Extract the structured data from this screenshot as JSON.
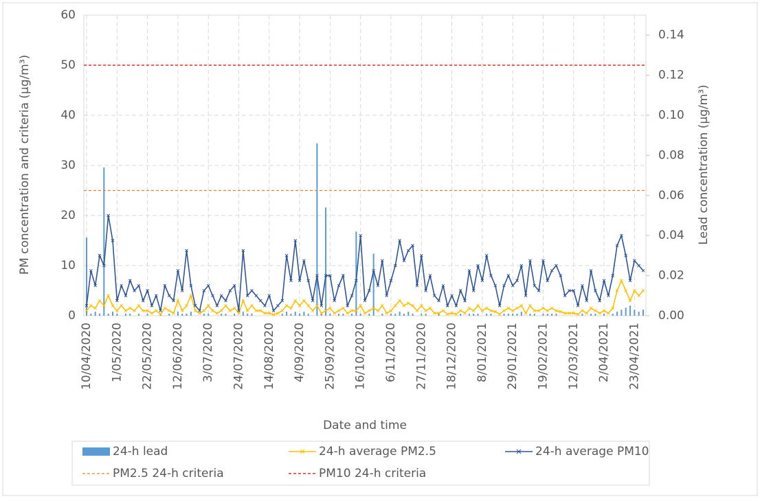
{
  "chart_data": {
    "type": "combo",
    "x_label": "Date and time",
    "y_label": "PM concentration and criteria (µg/m³)",
    "y2_label": "Lead concentration (µg/m³)",
    "categories": [
      "10/04/2020",
      null,
      null,
      null,
      null,
      null,
      null,
      "1/05/2020",
      null,
      null,
      null,
      null,
      null,
      null,
      "22/05/2020",
      null,
      null,
      null,
      null,
      null,
      null,
      "12/06/2020",
      null,
      null,
      null,
      null,
      null,
      null,
      "3/07/2020",
      null,
      null,
      null,
      null,
      null,
      null,
      "24/07/2020",
      null,
      null,
      null,
      null,
      null,
      null,
      "14/08/2020",
      null,
      null,
      null,
      null,
      null,
      null,
      "4/09/2020",
      null,
      null,
      null,
      null,
      null,
      null,
      "25/09/2020",
      null,
      null,
      null,
      null,
      null,
      null,
      "16/10/2020",
      null,
      null,
      null,
      null,
      null,
      null,
      "6/11/2020",
      null,
      null,
      null,
      null,
      null,
      null,
      "27/11/2020",
      null,
      null,
      null,
      null,
      null,
      null,
      "18/12/2020",
      null,
      null,
      null,
      null,
      null,
      null,
      "8/01/2021",
      null,
      null,
      null,
      null,
      null,
      null,
      "29/01/2021",
      null,
      null,
      null,
      null,
      null,
      null,
      "19/02/2021",
      null,
      null,
      null,
      null,
      null,
      null,
      "12/03/2021",
      null,
      null,
      null,
      null,
      null,
      null,
      "2/04/2021",
      null,
      null,
      null,
      null,
      null,
      null,
      "23/04/2021",
      null,
      null
    ],
    "ylim": [
      0,
      60
    ],
    "yticks": [
      0,
      10,
      20,
      30,
      40,
      50,
      60
    ],
    "y2lim": [
      0,
      0.15
    ],
    "y2ticks": [
      {
        "value": 0,
        "label": "0.00"
      },
      {
        "value": 0.02,
        "label": "0.02"
      },
      {
        "value": 0.04,
        "label": "0.04"
      },
      {
        "value": 0.06,
        "label": "0.06"
      },
      {
        "value": 0.08,
        "label": "0.08"
      },
      {
        "value": 0.1,
        "label": "0.10"
      },
      {
        "value": 0.12,
        "label": "0.12"
      },
      {
        "value": 0.14,
        "label": "0.14"
      }
    ],
    "grid": true,
    "series": [
      {
        "name": "24-h lead",
        "type": "bar",
        "axis": "y2",
        "color": "#5b9bd5",
        "values": [
          0.039,
          0.001,
          0.002,
          0.001,
          0.074,
          0.001,
          0.002,
          0.001,
          0,
          0.001,
          0.001,
          0,
          0.001,
          0,
          0.001,
          0,
          0,
          0.001,
          0,
          0.001,
          0,
          0.002,
          0.001,
          0.001,
          0.002,
          0,
          0,
          0.001,
          0.001,
          0,
          0,
          0.001,
          0.001,
          0,
          0.001,
          0,
          0.002,
          0.001,
          0.001,
          0,
          0,
          0,
          0,
          0,
          0,
          0.001,
          0.002,
          0.001,
          0.002,
          0.001,
          0.002,
          0.001,
          0,
          0.086,
          0.001,
          0.054,
          0.001,
          0,
          0.001,
          0.001,
          0,
          0.001,
          0.042,
          0.001,
          0,
          0.001,
          0.031,
          0,
          0.001,
          0,
          0.001,
          0.001,
          0.002,
          0.001,
          0.002,
          0.001,
          0,
          0.001,
          0.001,
          0,
          0,
          0.001,
          0,
          0,
          0,
          0,
          0.001,
          0,
          0.001,
          0.001,
          0.001,
          0,
          0.001,
          0.001,
          0,
          0,
          0.001,
          0.001,
          0.001,
          0.001,
          0.002,
          0,
          0.001,
          0.001,
          0,
          0.001,
          0.001,
          0.001,
          0.001,
          0,
          0,
          0,
          0,
          0,
          0.001,
          0,
          0.001,
          0.001,
          0,
          0.001,
          0,
          0.001,
          0.002,
          0.003,
          0.004,
          0.005,
          0.003,
          0.002,
          0.003
        ]
      },
      {
        "name": "24-h average PM2.5",
        "type": "line",
        "axis": "y",
        "color": "#ffc000",
        "values": [
          1,
          2,
          1.5,
          3,
          2,
          4,
          2,
          1,
          2,
          1,
          1.5,
          1,
          2,
          1,
          1,
          0.5,
          1,
          0.3,
          1.5,
          1,
          0.5,
          3,
          1,
          2,
          4,
          1,
          0.5,
          1,
          2,
          1,
          0.5,
          1,
          2,
          1,
          1.5,
          0.5,
          3,
          1,
          2,
          1,
          1,
          0.5,
          0.5,
          0.2,
          0.5,
          1,
          2,
          1.5,
          3,
          2,
          3,
          2,
          1,
          2,
          0.5,
          1,
          1.5,
          0.5,
          1,
          1.5,
          0.5,
          1,
          1,
          2,
          0.5,
          1,
          1.5,
          1,
          2,
          0.5,
          1,
          2,
          3,
          2,
          2.5,
          2,
          1,
          2,
          1,
          1.5,
          0.5,
          0.5,
          1,
          0.3,
          0.5,
          0.3,
          1,
          0.5,
          1.5,
          1,
          2,
          1,
          1.5,
          1,
          0.8,
          0.3,
          1,
          1.5,
          1,
          1.5,
          2,
          0.5,
          2,
          1,
          1,
          1.5,
          1,
          1.5,
          1,
          0.8,
          0.5,
          0.5,
          0.5,
          0.3,
          1,
          0.5,
          1.5,
          1,
          0.5,
          1,
          0.5,
          1.5,
          5,
          7,
          5,
          3,
          5,
          4,
          5
        ]
      },
      {
        "name": "24-h average PM10",
        "type": "line",
        "axis": "y",
        "color": "#2f5597",
        "values": [
          2,
          9,
          6,
          12,
          10,
          20,
          15,
          3,
          6,
          4,
          7,
          5,
          6,
          3,
          5,
          2,
          4,
          1,
          6,
          4,
          3,
          9,
          5,
          13,
          6,
          2,
          1,
          5,
          6,
          4,
          2,
          4,
          3,
          5,
          6,
          1,
          13,
          4,
          5,
          4,
          3,
          2,
          4,
          1,
          2,
          3,
          12,
          7,
          15,
          7,
          11,
          7,
          3,
          8,
          2,
          8,
          8,
          3,
          6,
          8,
          2,
          4,
          7,
          16,
          3,
          5,
          9,
          6,
          11,
          4,
          7,
          10,
          15,
          11,
          13,
          14,
          6,
          12,
          5,
          8,
          4,
          3,
          6,
          2,
          4,
          2,
          5,
          3,
          9,
          5,
          10,
          7,
          12,
          8,
          6,
          2,
          6,
          8,
          6,
          7,
          10,
          4,
          11,
          6,
          5,
          11,
          7,
          9,
          10,
          8,
          4,
          5,
          5,
          2,
          6,
          3,
          9,
          5,
          3,
          7,
          4,
          8,
          14,
          16,
          12,
          7,
          11,
          10,
          9
        ]
      }
    ],
    "reference_lines": [
      {
        "name": "PM2.5 24-h criteria",
        "value": 25,
        "color": "#ed7d31"
      },
      {
        "name": "PM10 24-h criteria",
        "value": 50,
        "color": "#e00000"
      }
    ]
  }
}
